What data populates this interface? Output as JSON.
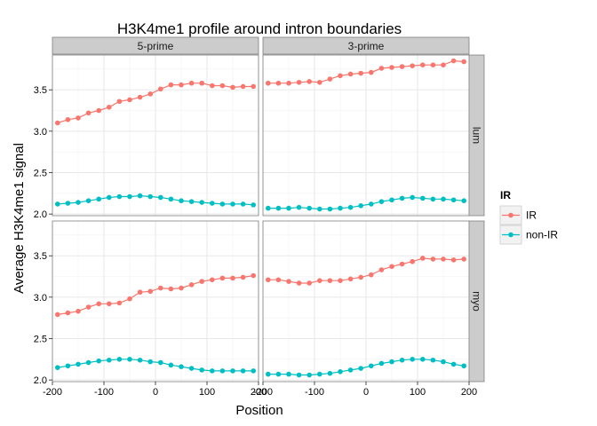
{
  "chart_data": {
    "type": "line",
    "title": "H3K4me1 profile around intron boundaries",
    "xlabel": "Position",
    "ylabel": "Average H3K4me1 signal",
    "xlim": [
      -200,
      200
    ],
    "ylim": [
      1.98,
      3.92
    ],
    "x_ticks": [
      -200,
      -100,
      0,
      100,
      200
    ],
    "y_ticks": [
      2.0,
      2.5,
      3.0,
      3.5
    ],
    "y_tick_labels": [
      "2.0",
      "2.5",
      "3.0",
      "3.5"
    ],
    "grid": true,
    "col_facets": [
      "5-prime",
      "3-prime"
    ],
    "row_facets": [
      "lum",
      "myo"
    ],
    "legend": {
      "title": "IR",
      "position": "right",
      "entries": [
        {
          "label": "IR",
          "color": "#F8766D"
        },
        {
          "label": "non-IR",
          "color": "#00BFC4"
        }
      ]
    },
    "x": [
      -190,
      -170,
      -150,
      -130,
      -110,
      -90,
      -70,
      -50,
      -30,
      -10,
      10,
      30,
      50,
      70,
      90,
      110,
      130,
      150,
      170,
      190
    ],
    "panels": [
      {
        "row": "lum",
        "col": "5-prime",
        "series": [
          {
            "name": "IR",
            "values": [
              3.1,
              3.14,
              3.16,
              3.22,
              3.25,
              3.29,
              3.36,
              3.38,
              3.41,
              3.45,
              3.51,
              3.56,
              3.56,
              3.58,
              3.58,
              3.55,
              3.55,
              3.53,
              3.54,
              3.54
            ]
          },
          {
            "name": "non-IR",
            "values": [
              2.12,
              2.13,
              2.14,
              2.16,
              2.18,
              2.2,
              2.21,
              2.21,
              2.22,
              2.21,
              2.2,
              2.18,
              2.16,
              2.15,
              2.14,
              2.13,
              2.12,
              2.12,
              2.12,
              2.11
            ]
          }
        ]
      },
      {
        "row": "lum",
        "col": "3-prime",
        "series": [
          {
            "name": "IR",
            "values": [
              3.58,
              3.58,
              3.58,
              3.59,
              3.6,
              3.59,
              3.63,
              3.67,
              3.69,
              3.7,
              3.71,
              3.76,
              3.77,
              3.78,
              3.79,
              3.8,
              3.8,
              3.8,
              3.85,
              3.84
            ]
          },
          {
            "name": "non-IR",
            "values": [
              2.07,
              2.07,
              2.07,
              2.08,
              2.07,
              2.06,
              2.06,
              2.07,
              2.08,
              2.1,
              2.12,
              2.15,
              2.17,
              2.19,
              2.2,
              2.19,
              2.18,
              2.18,
              2.17,
              2.16
            ]
          }
        ]
      },
      {
        "row": "myo",
        "col": "5-prime",
        "series": [
          {
            "name": "IR",
            "values": [
              2.79,
              2.81,
              2.83,
              2.88,
              2.92,
              2.92,
              2.93,
              2.98,
              3.06,
              3.07,
              3.11,
              3.1,
              3.11,
              3.15,
              3.19,
              3.21,
              3.23,
              3.23,
              3.24,
              3.26
            ]
          },
          {
            "name": "non-IR",
            "values": [
              2.15,
              2.17,
              2.19,
              2.21,
              2.23,
              2.24,
              2.25,
              2.25,
              2.24,
              2.22,
              2.21,
              2.18,
              2.16,
              2.14,
              2.12,
              2.11,
              2.11,
              2.11,
              2.11,
              2.11
            ]
          }
        ]
      },
      {
        "row": "myo",
        "col": "3-prime",
        "series": [
          {
            "name": "IR",
            "values": [
              3.21,
              3.21,
              3.19,
              3.17,
              3.17,
              3.2,
              3.2,
              3.2,
              3.22,
              3.24,
              3.27,
              3.33,
              3.37,
              3.4,
              3.43,
              3.47,
              3.46,
              3.46,
              3.45,
              3.46
            ]
          },
          {
            "name": "non-IR",
            "values": [
              2.07,
              2.07,
              2.07,
              2.06,
              2.06,
              2.07,
              2.08,
              2.1,
              2.12,
              2.14,
              2.17,
              2.2,
              2.22,
              2.24,
              2.25,
              2.25,
              2.24,
              2.22,
              2.19,
              2.17
            ]
          }
        ]
      }
    ]
  }
}
